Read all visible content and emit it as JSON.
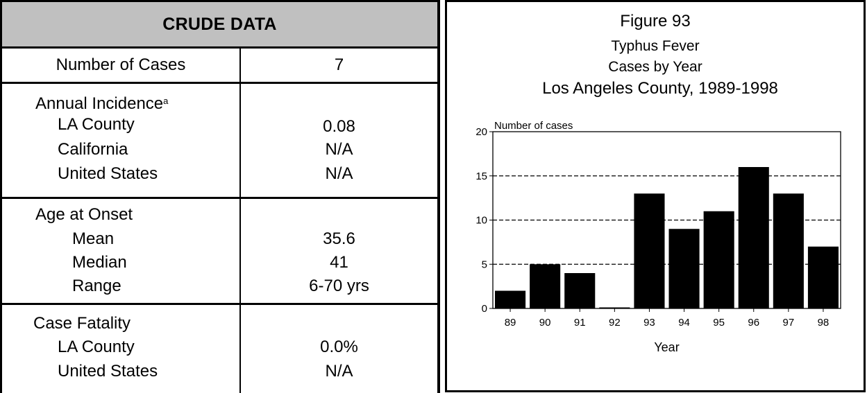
{
  "table": {
    "header": "CRUDE DATA",
    "rows": {
      "cases": {
        "label": "Number of Cases",
        "value": "7"
      },
      "incidence": {
        "title": "Annual Incidence",
        "superscript": "a",
        "items": [
          {
            "label": "LA County",
            "value": "0.08"
          },
          {
            "label": "California",
            "value": "N/A"
          },
          {
            "label": "United States",
            "value": "N/A"
          }
        ]
      },
      "age": {
        "title": "Age at Onset",
        "items": [
          {
            "label": "Mean",
            "value": "35.6"
          },
          {
            "label": "Median",
            "value": "41"
          },
          {
            "label": "Range",
            "value": "6-70 yrs"
          }
        ]
      },
      "fatality": {
        "title": "Case Fatality",
        "items": [
          {
            "label": "LA County",
            "value": "0.0%"
          },
          {
            "label": "United States",
            "value": "N/A"
          }
        ]
      }
    }
  },
  "figure": {
    "label": "Figure 93",
    "title_lines": [
      "Typhus Fever",
      "Cases by Year",
      "Los Angeles County, 1989-1998"
    ]
  },
  "chart_data": {
    "type": "bar",
    "categories": [
      "89",
      "90",
      "91",
      "92",
      "93",
      "94",
      "95",
      "96",
      "97",
      "98"
    ],
    "values": [
      2,
      5,
      4,
      0,
      13,
      9,
      11,
      16,
      13,
      7
    ],
    "title": "Typhus Fever Cases by Year Los Angeles County, 1989-1998",
    "xlabel": "Year",
    "ylabel": "Number of cases",
    "ylim": [
      0,
      20
    ],
    "yticks": [
      0,
      5,
      10,
      15,
      20
    ],
    "grid": "dashed horizontal at 5, 10, 15",
    "bar_color": "#000000"
  }
}
